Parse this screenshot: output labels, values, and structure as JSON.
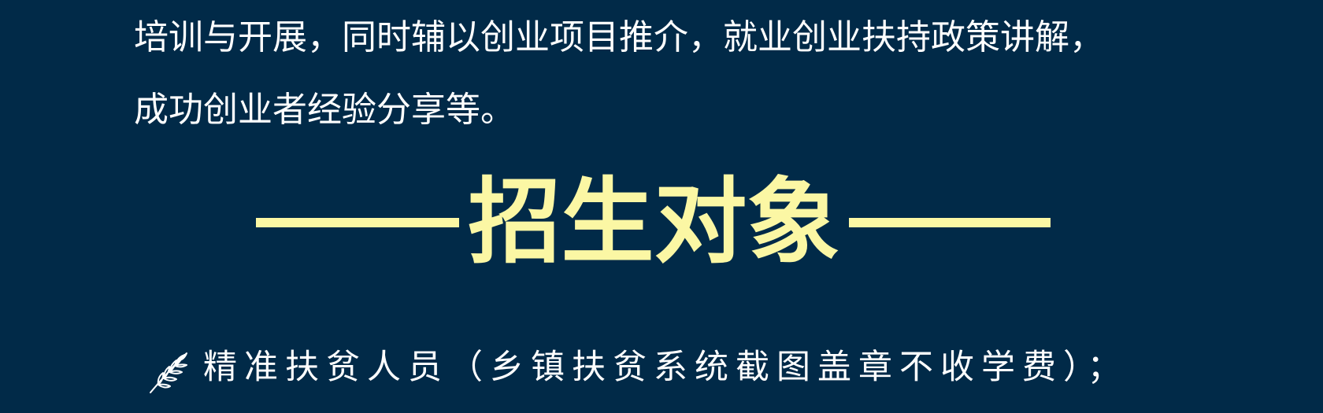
{
  "intro": {
    "line1": "培训与开展，同时辅以创业项目推介，就业创业扶持政策讲解，",
    "line2": "成功创业者经验分享等。"
  },
  "section": {
    "title": "招生对象"
  },
  "enrollment": {
    "items": [
      {
        "icon": "leaf-icon",
        "text": "精准扶贫人员（乡镇扶贫系统截图盖章不收学费）；"
      }
    ]
  },
  "colors": {
    "background": "#012a48",
    "heading": "#fbf7a4",
    "body_text": "#ffffff"
  }
}
